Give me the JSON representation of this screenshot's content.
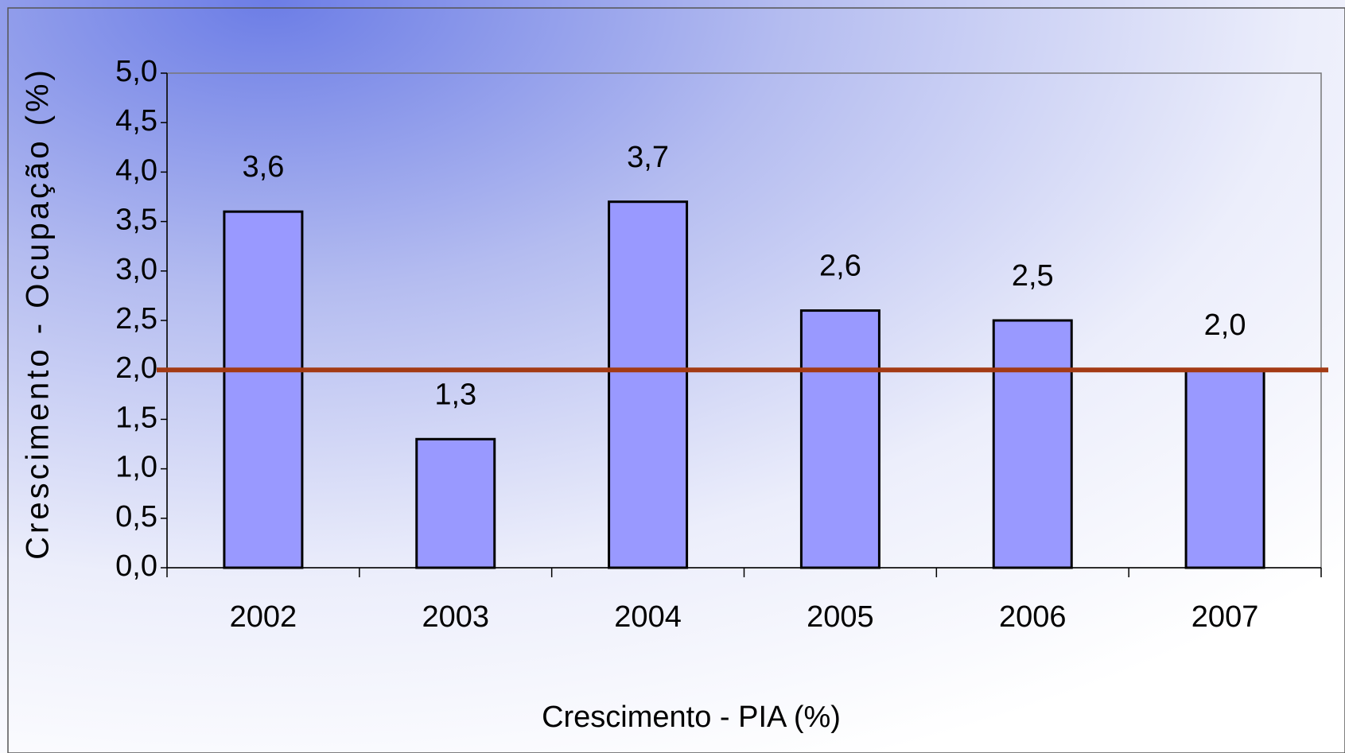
{
  "chart_data": {
    "type": "bar",
    "y_axis_label": "Crescimento - Ocupação (%)",
    "x_axis_label": "Crescimento - PIA (%)",
    "categories": [
      "2002",
      "2003",
      "2004",
      "2005",
      "2006",
      "2007"
    ],
    "values": [
      3.6,
      1.3,
      3.7,
      2.6,
      2.5,
      2.0
    ],
    "value_labels": [
      "3,6",
      "1,3",
      "3,7",
      "2,6",
      "2,5",
      "2,0"
    ],
    "color": "#9999ff",
    "reference_line": {
      "value": 2.0,
      "color": "#a33a14"
    },
    "ylim": [
      0,
      5
    ],
    "yticks": [
      {
        "value": 0,
        "label": "0,0"
      },
      {
        "value": 0.5,
        "label": "0,5"
      },
      {
        "value": 1,
        "label": "1,0"
      },
      {
        "value": 1.5,
        "label": "1,5"
      },
      {
        "value": 2,
        "label": "2,0"
      },
      {
        "value": 2.5,
        "label": "2,5"
      },
      {
        "value": 3,
        "label": "3,0"
      },
      {
        "value": 3.5,
        "label": "3,5"
      },
      {
        "value": 4,
        "label": "4,0"
      },
      {
        "value": 4.5,
        "label": "4,5"
      },
      {
        "value": 5,
        "label": "5,0"
      }
    ],
    "grid": false
  }
}
